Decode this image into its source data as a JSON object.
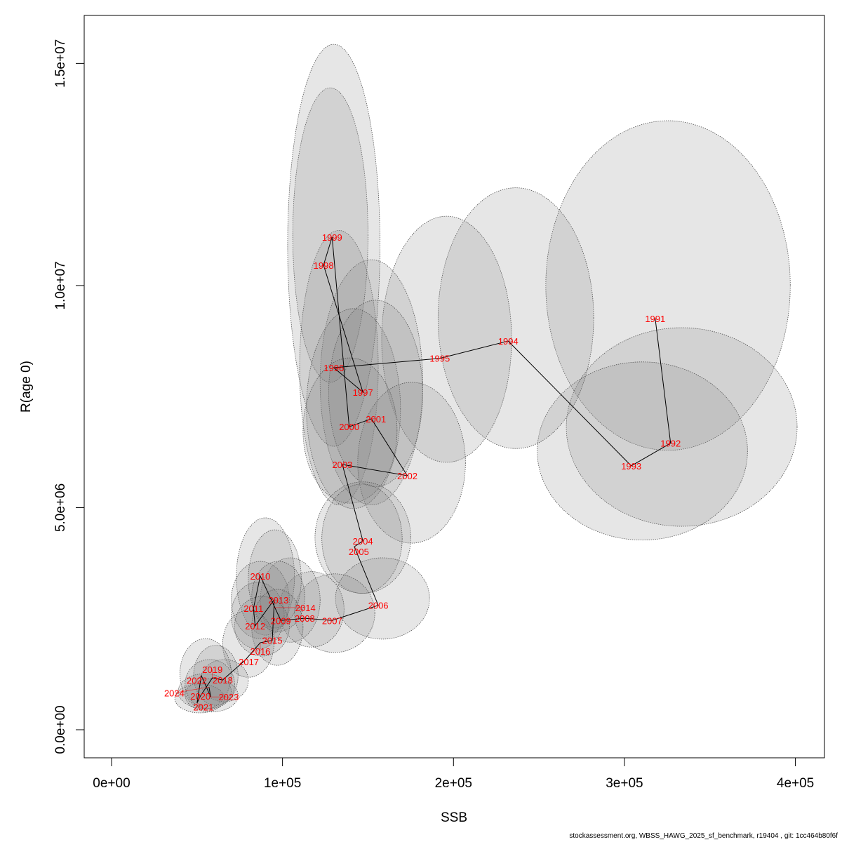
{
  "chart_data": {
    "type": "scatter",
    "xlabel": "SSB",
    "ylabel": "R(age 0)",
    "xlim": [
      -16000,
      417000
    ],
    "ylim": [
      -632000,
      16080000
    ],
    "xticks": [
      0,
      100000,
      200000,
      300000,
      400000
    ],
    "xtick_labels": [
      "0e+00",
      "1e+05",
      "2e+05",
      "3e+05",
      "4e+05"
    ],
    "yticks": [
      0,
      5000000,
      10000000,
      15000000
    ],
    "ytick_labels": [
      "0.0e+00",
      "5.0e+06",
      "1.0e+07",
      "1.5e+07"
    ],
    "grid": false,
    "point_label_color": "#ff0000",
    "line_color": "#000000",
    "region_fill": "#808080",
    "points": [
      {
        "year": "1991",
        "ssb": 318000,
        "r": 9260000,
        "region": [
          254000,
          397000,
          6290000,
          13710000
        ]
      },
      {
        "year": "1992",
        "ssb": 327000,
        "r": 6450000,
        "region": [
          266000,
          401000,
          4580000,
          9050000
        ]
      },
      {
        "year": "1993",
        "ssb": 304000,
        "r": 5940000,
        "region": [
          249000,
          372000,
          4270000,
          8280000
        ]
      },
      {
        "year": "1994",
        "ssb": 232000,
        "r": 8750000,
        "region": [
          191000,
          282000,
          6330000,
          12200000
        ]
      },
      {
        "year": "1995",
        "ssb": 192000,
        "r": 8360000,
        "region": [
          158000,
          234000,
          6020000,
          11560000
        ]
      },
      {
        "year": "1996",
        "ssb": 130000,
        "r": 8150000,
        "region": [
          110000,
          156000,
          5060000,
          11240000
        ]
      },
      {
        "year": "1997",
        "ssb": 147000,
        "r": 7600000,
        "region": [
          122000,
          182000,
          5060000,
          10580000
        ]
      },
      {
        "year": "1998",
        "ssb": 124000,
        "r": 10460000,
        "region": [
          106000,
          150000,
          7820000,
          14450000
        ]
      },
      {
        "year": "1999",
        "ssb": 129000,
        "r": 11090000,
        "region": [
          103000,
          157000,
          6380000,
          15430000
        ]
      },
      {
        "year": "2000",
        "ssb": 139000,
        "r": 6820000,
        "region": [
          114000,
          169000,
          4980000,
          9480000
        ]
      },
      {
        "year": "2001",
        "ssb": 152000,
        "r": 7000000,
        "region": [
          127000,
          182000,
          5470000,
          9670000
        ]
      },
      {
        "year": "2002",
        "ssb": 173000,
        "r": 5720000,
        "region": [
          144000,
          207000,
          4200000,
          7820000
        ]
      },
      {
        "year": "2003",
        "ssb": 135000,
        "r": 5970000,
        "region": [
          112000,
          167000,
          5100000,
          8370000
        ]
      },
      {
        "year": "2004",
        "ssb": 147000,
        "r": 4250000,
        "region": [
          119000,
          175000,
          3070000,
          5580000
        ]
      },
      {
        "year": "2005",
        "ssb": 142000,
        "r": 4120000,
        "region": [
          123000,
          170000,
          3070000,
          5530000
        ]
      },
      {
        "year": "2006",
        "ssb": 156000,
        "r": 2800000,
        "region": [
          131000,
          186000,
          2040000,
          3870000
        ]
      },
      {
        "year": "2007",
        "ssb": 129000,
        "r": 2460000,
        "region": [
          107000,
          154000,
          1740000,
          3510000
        ]
      },
      {
        "year": "2008",
        "ssb": 113000,
        "r": 2510000,
        "region": [
          98000,
          136000,
          1860000,
          3560000
        ]
      },
      {
        "year": "2009",
        "ssb": 99000,
        "r": 2460000,
        "region": [
          87000,
          122000,
          1970000,
          3870000
        ]
      },
      {
        "year": "2010",
        "ssb": 87000,
        "r": 3460000,
        "region": [
          73000,
          107000,
          2130000,
          4770000
        ]
      },
      {
        "year": "2011",
        "ssb": 83000,
        "r": 2730000,
        "region": [
          70000,
          104000,
          2050000,
          3790000
        ]
      },
      {
        "year": "2012",
        "ssb": 84000,
        "r": 2340000,
        "region": [
          70000,
          101000,
          1820000,
          3320000
        ]
      },
      {
        "year": "2013",
        "ssb": 95000,
        "r": 2920000,
        "region": [
          80000,
          111000,
          2290000,
          4500000
        ]
      },
      {
        "year": "2014",
        "ssb": 95000,
        "r": 2750000,
        "region": [
          82000,
          113000,
          2210000,
          3790000
        ]
      },
      {
        "year": "2015",
        "ssb": 94000,
        "r": 2010000,
        "region": [
          82000,
          112000,
          1450000,
          3160000
        ]
      },
      {
        "year": "2016",
        "ssb": 87000,
        "r": 1960000,
        "region": [
          72000,
          104000,
          1660000,
          3000000
        ]
      },
      {
        "year": "2017",
        "ssb": 78000,
        "r": 1560000,
        "region": [
          65000,
          95000,
          1180000,
          2690000
        ]
      },
      {
        "year": "2018",
        "ssb": 65000,
        "r": 1120000,
        "region": [
          52000,
          80000,
          630000,
          1580000
        ]
      },
      {
        "year": "2019",
        "ssb": 59000,
        "r": 1170000,
        "region": [
          48000,
          74000,
          550000,
          1900000
        ]
      },
      {
        "year": "2020",
        "ssb": 52000,
        "r": 760000,
        "region": [
          39000,
          70000,
          470000,
          1260000
        ]
      },
      {
        "year": "2021",
        "ssb": 50000,
        "r": 600000,
        "region": [
          37000,
          66000,
          380000,
          1030000
        ]
      },
      {
        "year": "2022",
        "ssb": 52500,
        "r": 1220000,
        "region": [
          40000,
          70000,
          470000,
          2050000
        ]
      },
      {
        "year": "2023",
        "ssb": 58000,
        "r": 740000,
        "region": [
          43000,
          74000,
          400000,
          1150000
        ]
      },
      {
        "year": "2024",
        "ssb": 57000,
        "r": 960000,
        "region": [
          43000,
          72000,
          470000,
          1580000
        ]
      }
    ]
  },
  "footer": "stockassessment.org, WBSS_HAWG_2025_sf_benchmark, r19404 , git: 1cc464b80f6f"
}
